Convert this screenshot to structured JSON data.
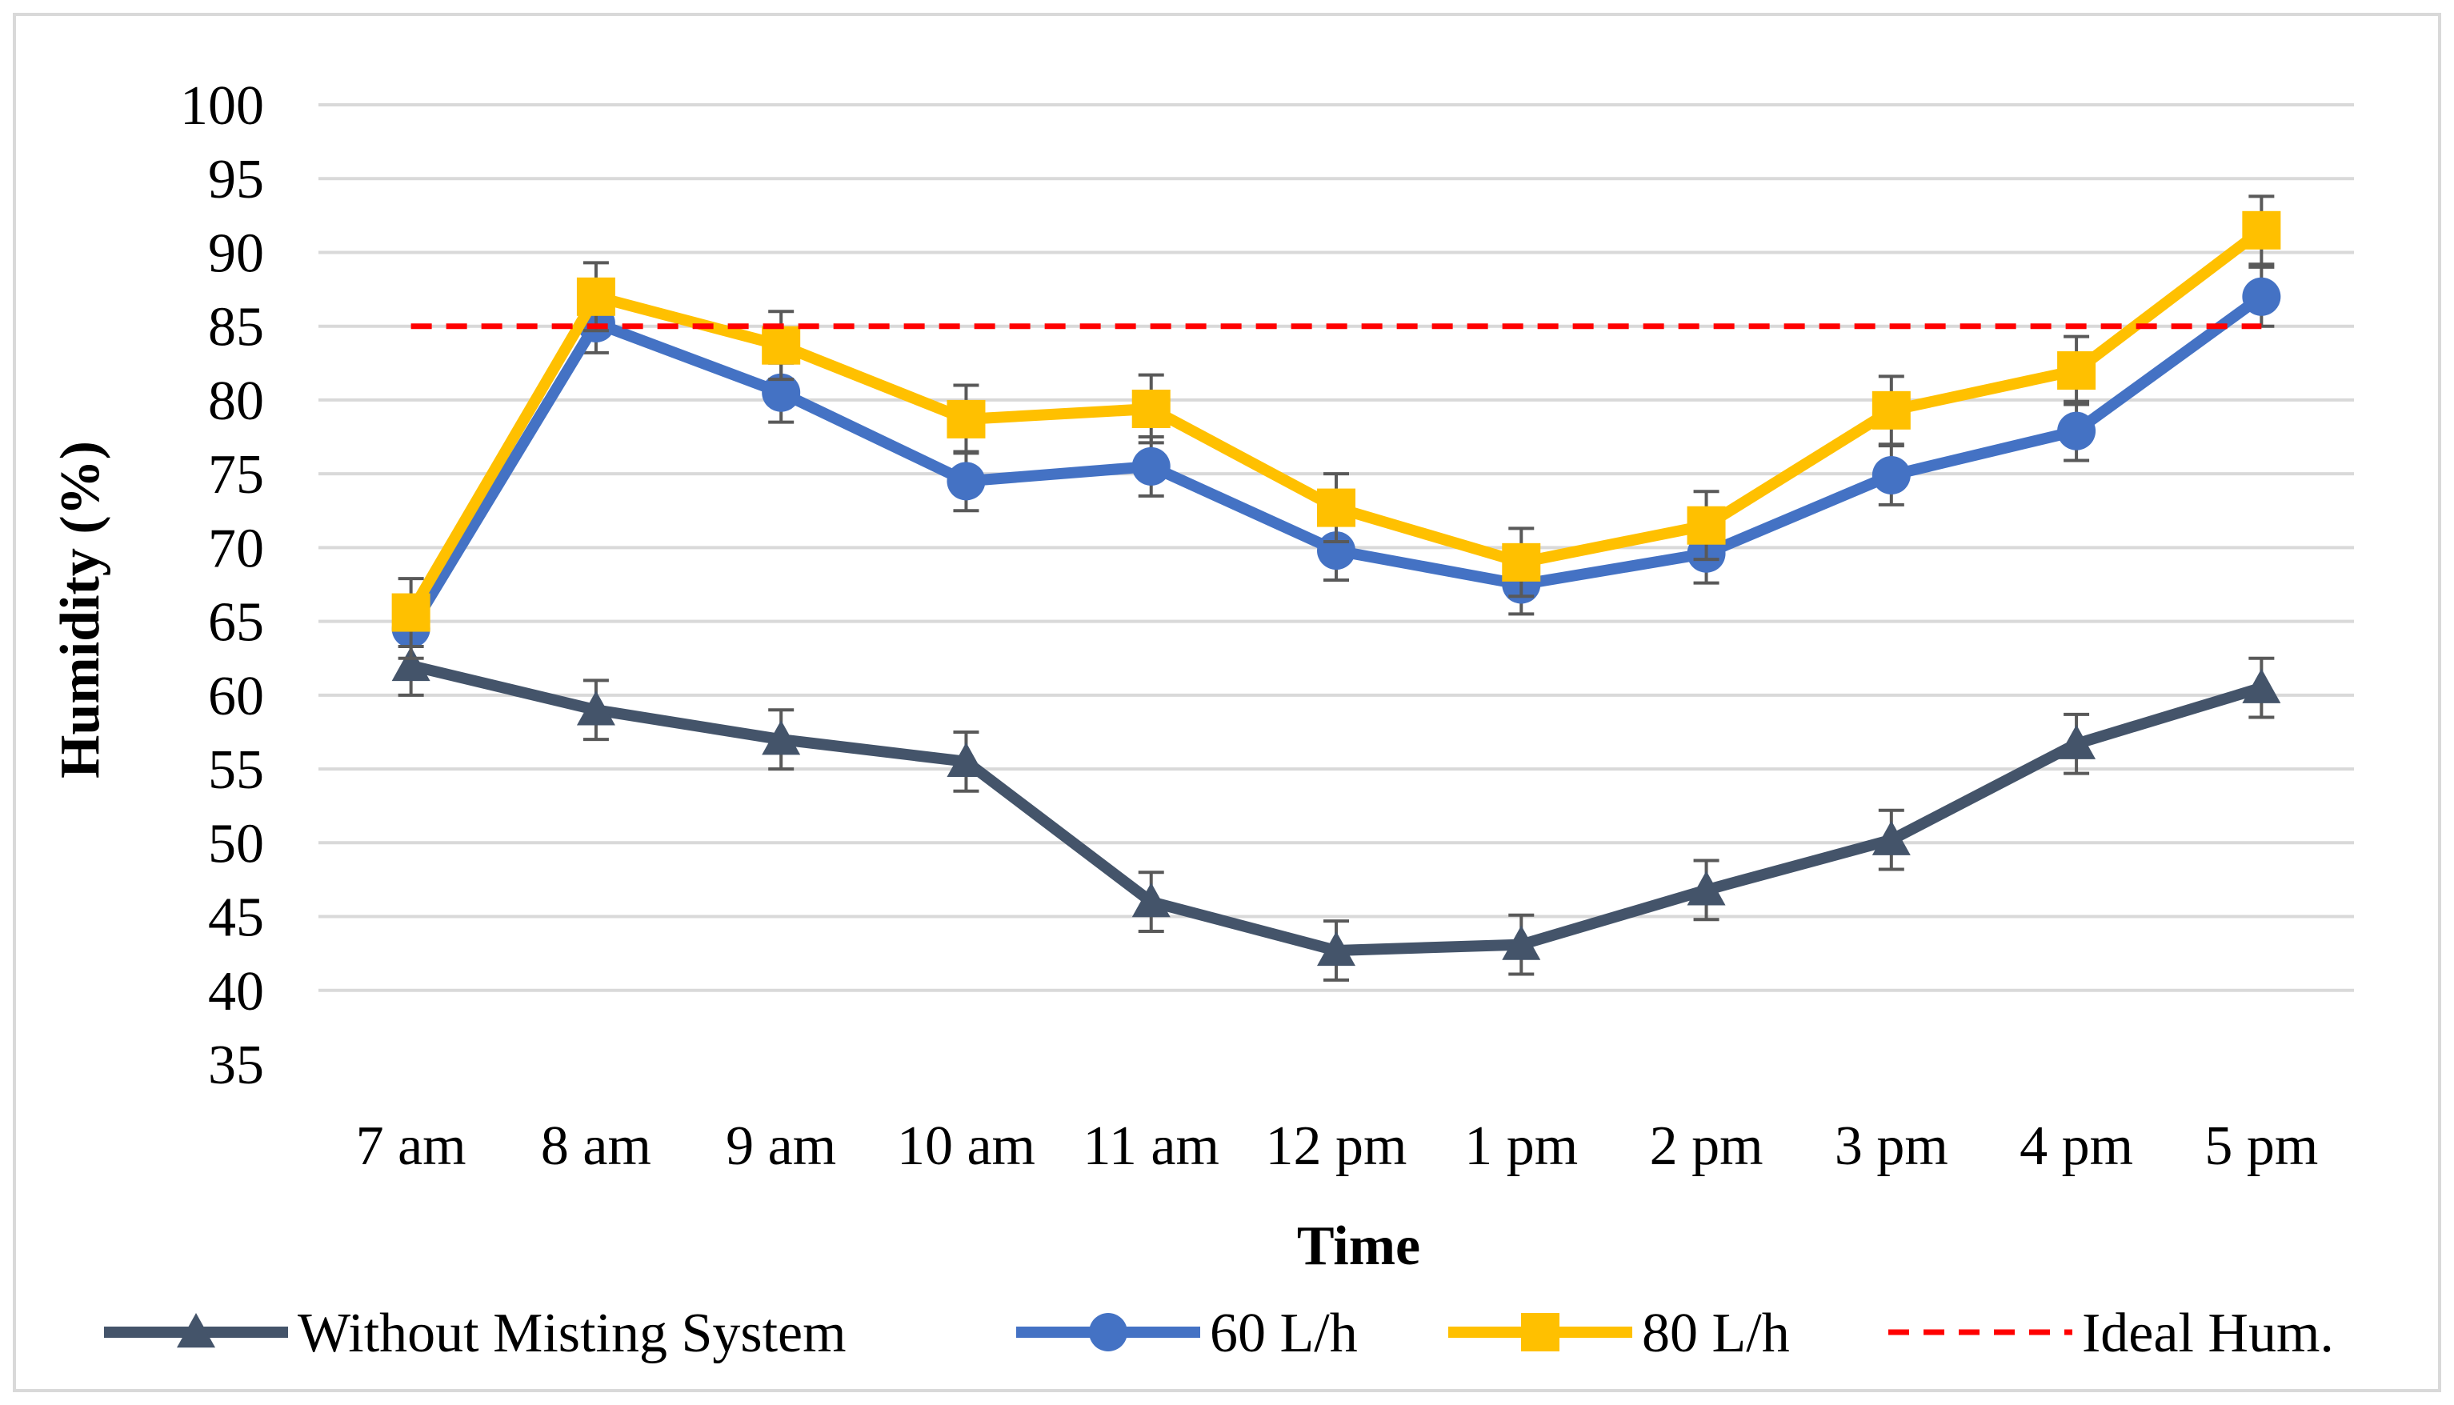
{
  "chart_data": {
    "type": "line",
    "title": "",
    "xlabel": "Time",
    "ylabel": "Humidity (%)",
    "categories": [
      "7 am",
      "8 am",
      "9 am",
      "10 am",
      "11 am",
      "12 pm",
      "1 pm",
      "2 pm",
      "3 pm",
      "4 pm",
      "5 pm"
    ],
    "ylim": [
      35,
      100
    ],
    "yticks": [
      "35",
      "40",
      "45",
      "50",
      "55",
      "60",
      "65",
      "70",
      "75",
      "80",
      "85",
      "90",
      "95",
      "100"
    ],
    "grid": true,
    "legend_position": "bottom",
    "series": [
      {
        "name": "Without Misting System",
        "values": [
          62,
          59,
          57,
          55.5,
          46,
          42.7,
          43.1,
          46.8,
          50.2,
          56.7,
          60.5
        ],
        "error": 2,
        "color": "#44546a",
        "marker": "triangle",
        "line_style": "solid"
      },
      {
        "name": "60 L/h",
        "values": [
          64.5,
          85.2,
          80.5,
          74.5,
          75.5,
          69.8,
          67.5,
          69.6,
          74.9,
          77.9,
          87
        ],
        "error": 2,
        "color": "#4472c4",
        "marker": "circle",
        "line_style": "solid"
      },
      {
        "name": "80 L/h",
        "values": [
          65.6,
          87,
          83.7,
          78.7,
          79.4,
          72.7,
          69,
          71.5,
          79.3,
          82,
          91.5
        ],
        "error": 2.3,
        "color": "#ffc000",
        "marker": "square",
        "line_style": "solid"
      },
      {
        "name": "Ideal Hum.",
        "values": [
          85,
          85,
          85,
          85,
          85,
          85,
          85,
          85,
          85,
          85,
          85
        ],
        "color": "#ff0000",
        "marker": "none",
        "line_style": "dashed"
      }
    ]
  }
}
